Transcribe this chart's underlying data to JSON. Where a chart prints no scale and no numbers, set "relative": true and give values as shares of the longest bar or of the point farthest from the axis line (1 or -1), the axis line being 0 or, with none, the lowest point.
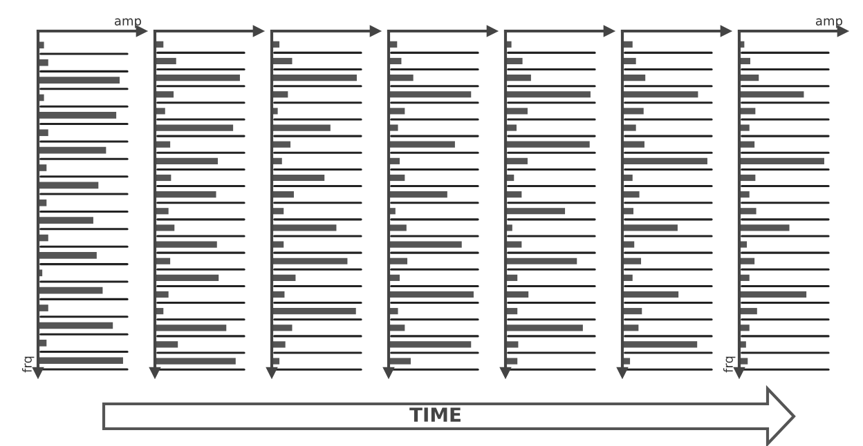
{
  "chart_data": [
    {
      "type": "bar",
      "orientation": "horizontal",
      "relative": true,
      "grid": true,
      "color": "#555555",
      "xlabel": "amp",
      "ylabel": "frq",
      "categories": [
        null,
        null,
        null,
        null,
        null,
        null,
        null,
        null,
        null,
        null,
        null,
        null,
        null,
        null,
        null,
        null,
        null,
        null,
        null
      ],
      "values": [
        0.07,
        0.12,
        0.96,
        0.07,
        0.92,
        0.12,
        0.8,
        0.1,
        0.71,
        0.1,
        0.65,
        0.12,
        0.69,
        0.05,
        0.76,
        0.12,
        0.88,
        0.1,
        1.0
      ]
    },
    {
      "type": "bar",
      "orientation": "horizontal",
      "relative": true,
      "grid": true,
      "color": "#555555",
      "categories": [
        null,
        null,
        null,
        null,
        null,
        null,
        null,
        null,
        null,
        null,
        null,
        null,
        null,
        null,
        null,
        null,
        null,
        null,
        null,
        null
      ],
      "values": [
        0.1,
        0.25,
        1.0,
        0.22,
        0.12,
        0.92,
        0.18,
        0.74,
        0.19,
        0.72,
        0.16,
        0.23,
        0.73,
        0.18,
        0.75,
        0.16,
        0.1,
        0.84,
        0.27,
        0.95
      ]
    },
    {
      "type": "bar",
      "orientation": "horizontal",
      "relative": true,
      "grid": true,
      "color": "#555555",
      "categories": [
        null,
        null,
        null,
        null,
        null,
        null,
        null,
        null,
        null,
        null,
        null,
        null,
        null,
        null,
        null,
        null,
        null,
        null,
        null,
        null
      ],
      "values": [
        0.09,
        0.24,
        1.0,
        0.19,
        0.07,
        0.69,
        0.22,
        0.12,
        0.62,
        0.26,
        0.14,
        0.76,
        0.14,
        0.89,
        0.28,
        0.15,
        0.99,
        0.24,
        0.16,
        0.09
      ]
    },
    {
      "type": "bar",
      "orientation": "horizontal",
      "relative": true,
      "grid": true,
      "color": "#555555",
      "categories": [
        null,
        null,
        null,
        null,
        null,
        null,
        null,
        null,
        null,
        null,
        null,
        null,
        null,
        null,
        null,
        null,
        null,
        null,
        null,
        null
      ],
      "values": [
        0.1,
        0.15,
        0.29,
        0.97,
        0.19,
        0.11,
        0.78,
        0.13,
        0.19,
        0.69,
        0.08,
        0.21,
        0.86,
        0.22,
        0.13,
        1.0,
        0.11,
        0.19,
        0.97,
        0.26
      ]
    },
    {
      "type": "bar",
      "orientation": "horizontal",
      "relative": true,
      "grid": true,
      "color": "#555555",
      "categories": [
        null,
        null,
        null,
        null,
        null,
        null,
        null,
        null,
        null,
        null,
        null,
        null,
        null,
        null,
        null,
        null,
        null,
        null,
        null,
        null
      ],
      "values": [
        0.07,
        0.2,
        0.3,
        1.0,
        0.26,
        0.13,
        0.99,
        0.26,
        0.1,
        0.19,
        0.7,
        0.08,
        0.19,
        0.84,
        0.14,
        0.27,
        0.14,
        0.91,
        0.15,
        0.14
      ]
    },
    {
      "type": "bar",
      "orientation": "horizontal",
      "relative": true,
      "grid": true,
      "color": "#555555",
      "categories": [
        null,
        null,
        null,
        null,
        null,
        null,
        null,
        null,
        null,
        null,
        null,
        null,
        null,
        null,
        null,
        null,
        null,
        null,
        null,
        null
      ],
      "values": [
        0.12,
        0.16,
        0.27,
        0.89,
        0.25,
        0.16,
        0.26,
        1.0,
        0.12,
        0.2,
        0.13,
        0.65,
        0.14,
        0.22,
        0.12,
        0.66,
        0.23,
        0.19,
        0.88,
        0.09
      ]
    },
    {
      "type": "bar",
      "orientation": "horizontal",
      "relative": true,
      "grid": true,
      "color": "#555555",
      "xlabel": "amp",
      "ylabel": "frq",
      "annotations": [
        "TIME"
      ],
      "categories": [
        null,
        null,
        null,
        null,
        null,
        null,
        null,
        null,
        null,
        null,
        null,
        null,
        null,
        null,
        null,
        null,
        null,
        null,
        null,
        null
      ],
      "values": [
        0.06,
        0.13,
        0.23,
        0.76,
        0.19,
        0.12,
        0.18,
        1.0,
        0.19,
        0.12,
        0.2,
        0.59,
        0.09,
        0.18,
        0.12,
        0.79,
        0.21,
        0.12,
        0.08,
        0.1
      ]
    }
  ]
}
